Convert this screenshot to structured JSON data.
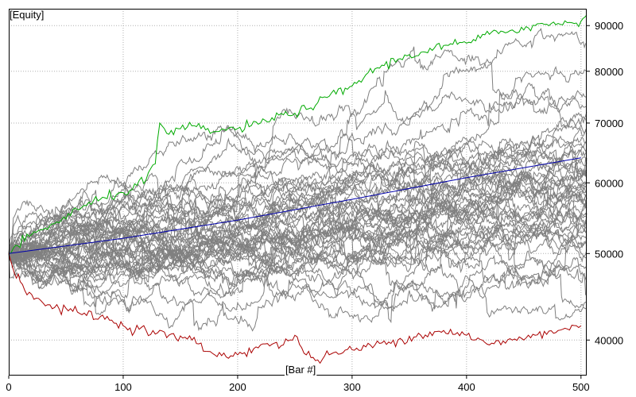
{
  "chart_data": {
    "type": "line",
    "title": "",
    "ylabel": "[Equity]",
    "xlabel": "[Bar #]",
    "xlim": [
      0,
      505
    ],
    "ylim": [
      36500,
      94000
    ],
    "y_scale": "log",
    "grid": true,
    "legend": "none",
    "x_ticks": [
      0,
      100,
      200,
      300,
      400,
      500
    ],
    "x_tick_labels": [
      "0",
      "100",
      "200",
      "300",
      "400",
      "500"
    ],
    "y_ticks": [
      40000,
      50000,
      60000,
      70000,
      80000,
      90000
    ],
    "y_tick_labels": [
      "40000",
      "50000",
      "60000",
      "70000",
      "80000",
      "90000"
    ],
    "colors": {
      "best": "#00aa00",
      "worst": "#aa0000",
      "average": "#0000aa",
      "simulations": "#808080",
      "grid": "#b0b0b0"
    },
    "start_value": 50000,
    "simulations": {
      "count": 50,
      "final_values": [
        86000,
        80000,
        75000,
        72000,
        70000,
        68000,
        66500,
        65500,
        64000,
        63000,
        62500,
        62000,
        61500,
        61000,
        60500,
        60000,
        59500,
        59000,
        58500,
        58000,
        57500,
        57000,
        56500,
        56000,
        55500,
        55000,
        54500,
        54000,
        53500,
        53000,
        52500,
        52000,
        51000,
        50500,
        49500,
        48000,
        46500,
        45000,
        44000,
        43500,
        69000,
        67000,
        63500,
        60800,
        58800,
        57800,
        56200,
        54800,
        73000,
        65000
      ]
    },
    "series": [
      {
        "role": "best",
        "x": [
          0,
          20,
          40,
          60,
          80,
          100,
          120,
          128,
          132,
          140,
          160,
          180,
          200,
          220,
          240,
          260,
          280,
          300,
          320,
          340,
          360,
          380,
          400,
          420,
          440,
          460,
          480,
          500,
          505
        ],
        "values": [
          50000,
          52500,
          54000,
          56000,
          57500,
          58500,
          60500,
          63000,
          70000,
          68000,
          69500,
          68500,
          69000,
          70000,
          71500,
          72500,
          75000,
          77000,
          80500,
          82500,
          84000,
          85500,
          86000,
          88000,
          89000,
          90000,
          90500,
          91000,
          92500
        ]
      },
      {
        "role": "worst",
        "x": [
          0,
          5,
          10,
          20,
          30,
          40,
          60,
          80,
          100,
          120,
          140,
          160,
          180,
          200,
          220,
          240,
          250,
          260,
          270,
          280,
          300,
          320,
          340,
          360,
          380,
          400,
          420,
          440,
          460,
          480,
          500
        ],
        "values": [
          50000,
          47500,
          46500,
          45000,
          44000,
          43500,
          43000,
          42500,
          41500,
          41000,
          40500,
          40000,
          38500,
          38500,
          39500,
          39500,
          40500,
          38500,
          38000,
          38500,
          39000,
          39500,
          40000,
          40500,
          41000,
          40500,
          39500,
          40000,
          40500,
          41000,
          41500
        ]
      },
      {
        "role": "average",
        "x": [
          0,
          100,
          200,
          300,
          400,
          500
        ],
        "values": [
          50000,
          52000,
          54500,
          57500,
          60800,
          64000
        ]
      }
    ]
  }
}
